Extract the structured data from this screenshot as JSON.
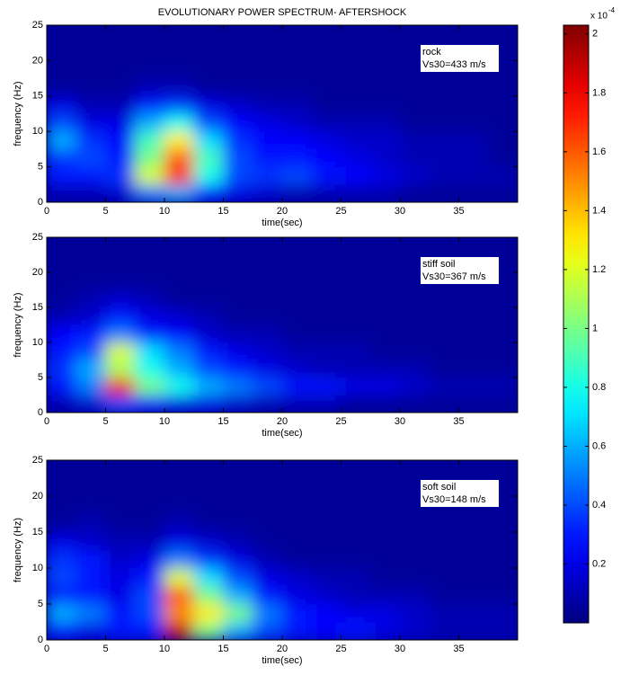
{
  "chart_data": [
    {
      "type": "heatmap",
      "title": "EVOLUTIONARY POWER SPECTRUM- AFTERSHOCK",
      "xlabel": "time(sec)",
      "ylabel": "frequency (Hz)",
      "annotation": [
        "rock",
        "Vs30=433 m/s"
      ],
      "xlim": [
        0,
        40
      ],
      "xticks": [
        0,
        5,
        10,
        15,
        20,
        25,
        30,
        35
      ],
      "ylim": [
        0,
        25
      ],
      "yticks": [
        0,
        5,
        10,
        15,
        20,
        25
      ],
      "xbins": [
        0,
        2.5,
        5,
        7.5,
        10,
        12.5,
        15,
        17.5,
        20,
        22.5,
        25,
        27.5,
        30,
        32.5,
        35,
        37.5,
        40
      ],
      "ybins": [
        0,
        2.5,
        5,
        7.5,
        10,
        12.5,
        15,
        17.5,
        20,
        22.5,
        25
      ],
      "values": [
        [
          0.1,
          0.1,
          0.15,
          0.5,
          0.6,
          0.3,
          0.2,
          0.15,
          0.1,
          0.1,
          0.1,
          0.1,
          0.05,
          0.05,
          0.05,
          0.05
        ],
        [
          0.3,
          0.3,
          0.35,
          1.2,
          1.7,
          0.8,
          0.4,
          0.35,
          0.4,
          0.3,
          0.25,
          0.2,
          0.15,
          0.1,
          0.1,
          0.1
        ],
        [
          0.35,
          0.4,
          0.3,
          1.0,
          1.6,
          0.9,
          0.4,
          0.3,
          0.3,
          0.25,
          0.2,
          0.15,
          0.1,
          0.1,
          0.1,
          0.05
        ],
        [
          0.6,
          0.35,
          0.25,
          0.9,
          1.3,
          0.7,
          0.35,
          0.25,
          0.25,
          0.2,
          0.15,
          0.15,
          0.1,
          0.1,
          0.1,
          0.05
        ],
        [
          0.4,
          0.2,
          0.2,
          0.6,
          0.8,
          0.4,
          0.25,
          0.2,
          0.15,
          0.1,
          0.1,
          0.1,
          0.05,
          0.05,
          0.05,
          0.05
        ],
        [
          0.2,
          0.1,
          0.1,
          0.3,
          0.35,
          0.2,
          0.15,
          0.1,
          0.1,
          0.05,
          0.05,
          0.05,
          0.05,
          0.05,
          0.05,
          0.05
        ],
        [
          0.05,
          0.05,
          0.05,
          0.1,
          0.1,
          0.05,
          0.05,
          0.05,
          0.05,
          0.05,
          0.05,
          0.05,
          0.05,
          0.05,
          0.05,
          0.05
        ],
        [
          0.05,
          0.05,
          0.05,
          0.05,
          0.05,
          0.05,
          0.05,
          0.05,
          0.05,
          0.05,
          0.05,
          0.05,
          0.05,
          0.05,
          0.05,
          0.05
        ],
        [
          0.05,
          0.05,
          0.05,
          0.05,
          0.05,
          0.05,
          0.05,
          0.05,
          0.05,
          0.05,
          0.05,
          0.05,
          0.05,
          0.05,
          0.05,
          0.05
        ],
        [
          0.05,
          0.05,
          0.05,
          0.05,
          0.05,
          0.05,
          0.05,
          0.05,
          0.05,
          0.05,
          0.05,
          0.05,
          0.05,
          0.05,
          0.05,
          0.05
        ]
      ],
      "colormap": "jet",
      "colorbar": {
        "clim": [
          0,
          2.03
        ],
        "ticks": [
          0.2,
          0.4,
          0.6,
          0.8,
          1,
          1.2,
          1.4,
          1.6,
          1.8,
          2
        ],
        "label": "x 10",
        "exponent": "-4"
      }
    },
    {
      "type": "heatmap",
      "xlabel": "time(sec)",
      "ylabel": "frequency (Hz)",
      "annotation": [
        "stiff soil",
        "Vs30=367 m/s"
      ],
      "xlim": [
        0,
        40
      ],
      "xticks": [
        0,
        5,
        10,
        15,
        20,
        25,
        30,
        35
      ],
      "ylim": [
        0,
        25
      ],
      "yticks": [
        0,
        5,
        10,
        15,
        20,
        25
      ],
      "xbins": [
        0,
        2.5,
        5,
        7.5,
        10,
        12.5,
        15,
        17.5,
        20,
        22.5,
        25,
        27.5,
        30,
        32.5,
        35,
        37.5,
        40
      ],
      "ybins": [
        0,
        2.5,
        5,
        7.5,
        10,
        12.5,
        15,
        17.5,
        20,
        22.5,
        25
      ],
      "values": [
        [
          0.1,
          0.15,
          0.4,
          0.3,
          0.2,
          0.2,
          0.15,
          0.1,
          0.1,
          0.1,
          0.05,
          0.05,
          0.05,
          0.05,
          0.05,
          0.05
        ],
        [
          0.3,
          0.5,
          1.8,
          1.0,
          0.8,
          0.6,
          0.5,
          0.4,
          0.3,
          0.3,
          0.2,
          0.2,
          0.15,
          0.1,
          0.1,
          0.1
        ],
        [
          0.35,
          0.6,
          1.1,
          0.8,
          0.6,
          0.4,
          0.3,
          0.2,
          0.15,
          0.1,
          0.1,
          0.1,
          0.1,
          0.05,
          0.05,
          0.05
        ],
        [
          0.3,
          0.4,
          1.2,
          0.7,
          0.5,
          0.3,
          0.2,
          0.15,
          0.1,
          0.1,
          0.1,
          0.05,
          0.05,
          0.05,
          0.05,
          0.05
        ],
        [
          0.25,
          0.3,
          0.5,
          0.3,
          0.25,
          0.15,
          0.1,
          0.1,
          0.05,
          0.05,
          0.05,
          0.05,
          0.05,
          0.05,
          0.05,
          0.05
        ],
        [
          0.1,
          0.15,
          0.3,
          0.2,
          0.15,
          0.1,
          0.05,
          0.05,
          0.05,
          0.05,
          0.05,
          0.05,
          0.05,
          0.05,
          0.05,
          0.05
        ],
        [
          0.05,
          0.1,
          0.15,
          0.1,
          0.05,
          0.05,
          0.05,
          0.05,
          0.05,
          0.05,
          0.05,
          0.05,
          0.05,
          0.05,
          0.05,
          0.05
        ],
        [
          0.05,
          0.05,
          0.05,
          0.05,
          0.05,
          0.05,
          0.05,
          0.05,
          0.05,
          0.05,
          0.05,
          0.05,
          0.05,
          0.05,
          0.05,
          0.05
        ],
        [
          0.05,
          0.05,
          0.05,
          0.05,
          0.05,
          0.05,
          0.05,
          0.05,
          0.05,
          0.05,
          0.05,
          0.05,
          0.05,
          0.05,
          0.05,
          0.05
        ],
        [
          0.05,
          0.05,
          0.05,
          0.05,
          0.05,
          0.05,
          0.05,
          0.05,
          0.05,
          0.05,
          0.05,
          0.05,
          0.05,
          0.05,
          0.05,
          0.05
        ]
      ],
      "colormap": "jet"
    },
    {
      "type": "heatmap",
      "xlabel": "time(sec)",
      "ylabel": "frequency (Hz)",
      "annotation": [
        "soft soil",
        "Vs30=148 m/s"
      ],
      "xlim": [
        0,
        40
      ],
      "xticks": [
        0,
        5,
        10,
        15,
        20,
        25,
        30,
        35
      ],
      "ylim": [
        0,
        25
      ],
      "yticks": [
        0,
        5,
        10,
        15,
        20,
        25
      ],
      "xbins": [
        0,
        2.5,
        5,
        7.5,
        10,
        12.5,
        15,
        17.5,
        20,
        22.5,
        25,
        27.5,
        30,
        32.5,
        35,
        37.5,
        40
      ],
      "ybins": [
        0,
        2.5,
        5,
        7.5,
        10,
        12.5,
        15,
        17.5,
        20,
        22.5,
        25
      ],
      "values": [
        [
          0.3,
          0.2,
          0.3,
          0.3,
          1.9,
          1.0,
          0.6,
          0.4,
          0.3,
          0.25,
          0.3,
          0.2,
          0.15,
          0.1,
          0.1,
          0.1
        ],
        [
          0.6,
          0.5,
          0.3,
          0.4,
          1.5,
          1.3,
          1.0,
          0.5,
          0.3,
          0.25,
          0.2,
          0.2,
          0.15,
          0.1,
          0.1,
          0.1
        ],
        [
          0.3,
          0.3,
          0.2,
          0.4,
          1.6,
          1.0,
          0.6,
          0.3,
          0.2,
          0.15,
          0.1,
          0.1,
          0.1,
          0.05,
          0.05,
          0.05
        ],
        [
          0.4,
          0.3,
          0.2,
          0.3,
          1.2,
          0.7,
          0.4,
          0.2,
          0.15,
          0.1,
          0.1,
          0.05,
          0.05,
          0.05,
          0.05,
          0.05
        ],
        [
          0.35,
          0.3,
          0.15,
          0.2,
          0.5,
          0.35,
          0.2,
          0.1,
          0.05,
          0.05,
          0.05,
          0.05,
          0.05,
          0.05,
          0.05,
          0.05
        ],
        [
          0.2,
          0.15,
          0.1,
          0.1,
          0.2,
          0.15,
          0.1,
          0.05,
          0.05,
          0.05,
          0.05,
          0.05,
          0.05,
          0.05,
          0.05,
          0.05
        ],
        [
          0.05,
          0.1,
          0.05,
          0.05,
          0.1,
          0.05,
          0.05,
          0.05,
          0.05,
          0.05,
          0.05,
          0.05,
          0.05,
          0.05,
          0.05,
          0.05
        ],
        [
          0.05,
          0.05,
          0.05,
          0.05,
          0.05,
          0.05,
          0.05,
          0.05,
          0.05,
          0.05,
          0.05,
          0.05,
          0.05,
          0.05,
          0.05,
          0.05
        ],
        [
          0.05,
          0.05,
          0.05,
          0.05,
          0.05,
          0.05,
          0.05,
          0.05,
          0.05,
          0.05,
          0.05,
          0.05,
          0.05,
          0.05,
          0.05,
          0.05
        ],
        [
          0.05,
          0.05,
          0.05,
          0.05,
          0.05,
          0.05,
          0.05,
          0.05,
          0.05,
          0.05,
          0.05,
          0.05,
          0.05,
          0.05,
          0.05,
          0.05
        ]
      ],
      "colormap": "jet"
    }
  ]
}
